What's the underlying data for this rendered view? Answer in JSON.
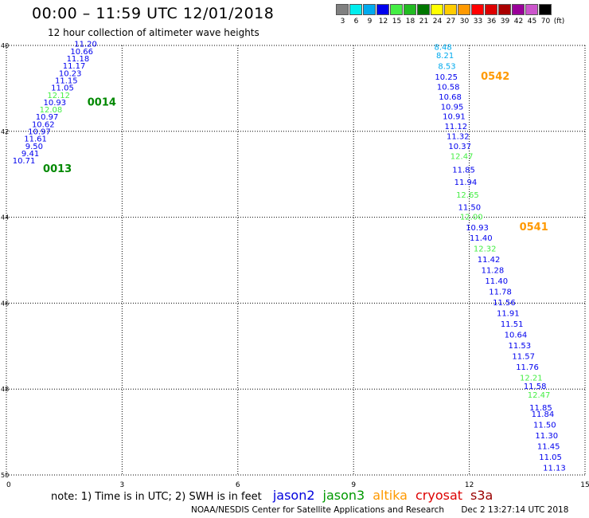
{
  "header": {
    "title": "00:00 – 11:59 UTC 12/01/2018",
    "subtitle": "12 hour collection of altimeter wave heights"
  },
  "colorbar": {
    "labels": [
      "3",
      "6",
      "9",
      "12",
      "15",
      "18",
      "21",
      "24",
      "27",
      "30",
      "33",
      "36",
      "39",
      "42",
      "45",
      "70",
      "(ft)"
    ],
    "colors": [
      "#808080",
      "#00eeee",
      "#00aaee",
      "#0000ee",
      "#44ee44",
      "#22bb22",
      "#007700",
      "#ffff00",
      "#ffcc00",
      "#ff9900",
      "#ff0000",
      "#dd0000",
      "#aa0000",
      "#990099",
      "#cc55cc",
      "#000000"
    ]
  },
  "note": {
    "text": "note: 1) Time is in UTC; 2) SWH is in feet",
    "satellites": [
      {
        "name": "jason2",
        "color": "#0000dd"
      },
      {
        "name": "jason3",
        "color": "#009900"
      },
      {
        "name": "altika",
        "color": "#ff9900"
      },
      {
        "name": "cryosat",
        "color": "#dd0000"
      },
      {
        "name": "s3a",
        "color": "#990000"
      }
    ]
  },
  "footer": {
    "center": "NOAA/NESDIS Center for Satellite Applications and Research",
    "timestamp": "Dec  2 13:27:14 UTC 2018"
  },
  "chart_data": {
    "type": "scatter",
    "title": "00:00 – 11:59 UTC 12/01/2018",
    "subtitle": "12 hour collection of altimeter wave heights",
    "xlim": [
      0,
      15
    ],
    "ylim": [
      -50,
      -40
    ],
    "x_ticks": [
      "0",
      "3",
      "6",
      "9",
      "12",
      "15"
    ],
    "y_ticks": [
      "40",
      "42",
      "44",
      "46",
      "48",
      "50"
    ],
    "grid": true,
    "color_scale": {
      "bounds": [
        0,
        3,
        6,
        9,
        12,
        15,
        18,
        21,
        24,
        27,
        30,
        33,
        36,
        39,
        42,
        45
      ],
      "colors": [
        "#808080",
        "#00eeee",
        "#00aaee",
        "#0000ee",
        "#44ee44",
        "#22bb22",
        "#007700",
        "#ffff00",
        "#ffcc00",
        "#ff9900",
        "#ff0000",
        "#dd0000",
        "#aa0000",
        "#990099",
        "#cc55cc",
        "#000000"
      ]
    },
    "tracks": [
      {
        "pass": "0014",
        "color": "#008800",
        "label_at": {
          "lon": 2.1,
          "lat": -41.4
        },
        "points": [
          {
            "lon": 2.35,
            "lat": -40.03,
            "value": "11.20"
          },
          {
            "lon": 2.25,
            "lat": -40.2,
            "value": "10.66"
          },
          {
            "lon": 2.15,
            "lat": -40.37,
            "value": "11.18"
          },
          {
            "lon": 2.05,
            "lat": -40.54,
            "value": "11.17"
          },
          {
            "lon": 1.95,
            "lat": -40.71,
            "value": "10.23"
          },
          {
            "lon": 1.85,
            "lat": -40.88,
            "value": "11.15"
          },
          {
            "lon": 1.75,
            "lat": -41.05,
            "value": "11.05"
          },
          {
            "lon": 1.65,
            "lat": -41.22,
            "value": "12.12"
          },
          {
            "lon": 1.55,
            "lat": -41.39,
            "value": "10.93"
          },
          {
            "lon": 1.45,
            "lat": -41.56,
            "value": "12.08"
          },
          {
            "lon": 1.35,
            "lat": -41.73,
            "value": "10.97"
          },
          {
            "lon": 1.25,
            "lat": -41.9,
            "value": "10.62"
          }
        ]
      },
      {
        "pass": "0013",
        "color": "#008800",
        "label_at": {
          "lon": 0.95,
          "lat": -42.95
        },
        "points": [
          {
            "lon": 1.15,
            "lat": -42.07,
            "value": "10.97"
          },
          {
            "lon": 1.05,
            "lat": -42.24,
            "value": "11.61"
          },
          {
            "lon": 0.95,
            "lat": -42.41,
            "value": "9.50"
          },
          {
            "lon": 0.85,
            "lat": -42.58,
            "value": "9.41"
          },
          {
            "lon": 0.75,
            "lat": -42.75,
            "value": "10.71"
          }
        ]
      },
      {
        "pass": "0542",
        "color": "#ff9900",
        "label_at": {
          "lon": 12.3,
          "lat": -40.8
        },
        "points": [
          {
            "lon": 11.55,
            "lat": -40.1,
            "value": "8.48"
          },
          {
            "lon": 11.6,
            "lat": -40.3,
            "value": "8.21"
          },
          {
            "lon": 11.65,
            "lat": -40.55,
            "value": "8.53"
          },
          {
            "lon": 11.7,
            "lat": -40.8,
            "value": "10.25"
          },
          {
            "lon": 11.75,
            "lat": -41.03,
            "value": "10.58"
          },
          {
            "lon": 11.8,
            "lat": -41.26,
            "value": "10.68"
          },
          {
            "lon": 11.85,
            "lat": -41.49,
            "value": "10.95"
          },
          {
            "lon": 11.9,
            "lat": -41.72,
            "value": "10.91"
          },
          {
            "lon": 11.95,
            "lat": -41.95,
            "value": "11.12"
          },
          {
            "lon": 12.0,
            "lat": -42.18,
            "value": "11.32"
          },
          {
            "lon": 12.05,
            "lat": -42.41,
            "value": "10.37"
          },
          {
            "lon": 12.1,
            "lat": -42.64,
            "value": "12.47"
          },
          {
            "lon": 12.15,
            "lat": -42.96,
            "value": "11.85"
          },
          {
            "lon": 12.2,
            "lat": -43.25,
            "value": "11.94"
          },
          {
            "lon": 12.25,
            "lat": -43.54,
            "value": "12.65"
          },
          {
            "lon": 12.3,
            "lat": -43.83,
            "value": "11.50"
          },
          {
            "lon": 12.35,
            "lat": -44.05,
            "value": "12.00"
          }
        ]
      },
      {
        "pass": "0541",
        "color": "#ff9900",
        "label_at": {
          "lon": 13.3,
          "lat": -44.3
        },
        "points": [
          {
            "lon": 12.5,
            "lat": -44.3,
            "value": "10.93"
          },
          {
            "lon": 12.6,
            "lat": -44.55,
            "value": "11.40"
          },
          {
            "lon": 12.7,
            "lat": -44.8,
            "value": "12.32"
          },
          {
            "lon": 12.8,
            "lat": -45.05,
            "value": "11.42"
          },
          {
            "lon": 12.9,
            "lat": -45.3,
            "value": "11.28"
          },
          {
            "lon": 13.0,
            "lat": -45.55,
            "value": "11.40"
          },
          {
            "lon": 13.1,
            "lat": -45.8,
            "value": "11.78"
          },
          {
            "lon": 13.2,
            "lat": -46.05,
            "value": "11.56"
          },
          {
            "lon": 13.3,
            "lat": -46.3,
            "value": "11.91"
          },
          {
            "lon": 13.4,
            "lat": -46.55,
            "value": "11.51"
          },
          {
            "lon": 13.5,
            "lat": -46.8,
            "value": "10.64"
          },
          {
            "lon": 13.6,
            "lat": -47.05,
            "value": "11.53"
          },
          {
            "lon": 13.7,
            "lat": -47.3,
            "value": "11.57"
          },
          {
            "lon": 13.8,
            "lat": -47.55,
            "value": "11.76"
          },
          {
            "lon": 13.9,
            "lat": -47.8,
            "value": "12.21"
          },
          {
            "lon": 14.0,
            "lat": -48.0,
            "value": "11.58"
          },
          {
            "lon": 14.1,
            "lat": -48.2,
            "value": "12.47"
          },
          {
            "lon": 14.15,
            "lat": -48.5,
            "value": "11.85"
          },
          {
            "lon": 14.2,
            "lat": -48.65,
            "value": "11.84"
          },
          {
            "lon": 14.25,
            "lat": -48.9,
            "value": "11.50"
          },
          {
            "lon": 14.3,
            "lat": -49.15,
            "value": "11.30"
          },
          {
            "lon": 14.35,
            "lat": -49.4,
            "value": "11.45"
          },
          {
            "lon": 14.4,
            "lat": -49.65,
            "value": "11.05"
          },
          {
            "lon": 14.5,
            "lat": -49.9,
            "value": "11.13"
          }
        ]
      }
    ]
  }
}
